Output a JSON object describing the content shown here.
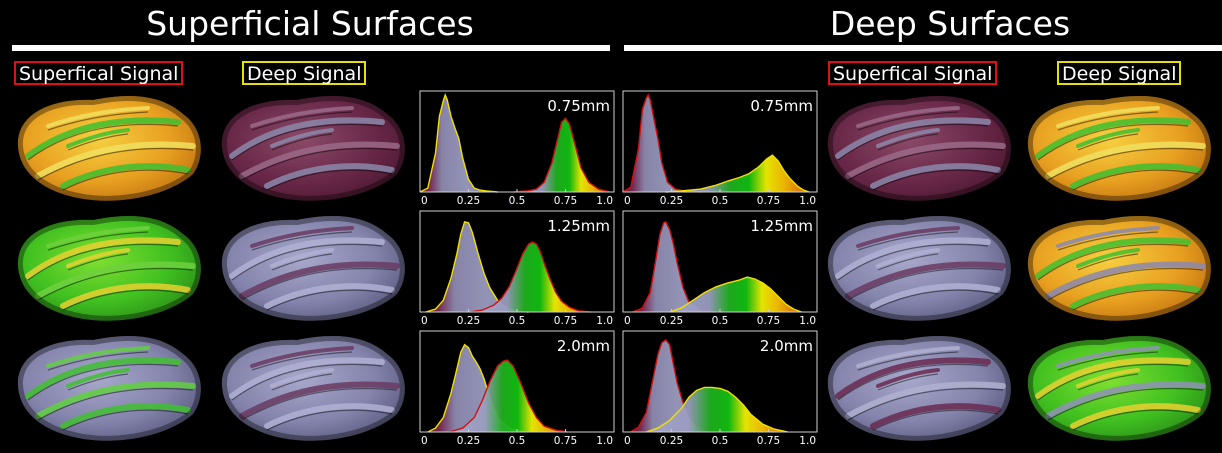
{
  "headers": {
    "superficial_title": "Superficial Surfaces",
    "deep_title": "Deep Surfaces"
  },
  "labels": {
    "sup_superficial_signal": "Superfical Signal",
    "sup_deep_signal": "Deep Signal",
    "deep_superficial_signal": "Superfical Signal",
    "deep_deep_signal": "Deep Signal"
  },
  "colors": {
    "superficial_box": "#e01010",
    "deep_box": "#e8e000",
    "deep_signal_fill": "#6a2850",
    "superficial_signal_fill": "#8a88b0"
  },
  "brains": {
    "left_superficial": [
      "yellow-orange-green",
      "green-yellow",
      "green-lavender"
    ],
    "left_deep": [
      "maroon-lavender",
      "lavender",
      "lavender"
    ],
    "right_superficial": [
      "maroon-lavender",
      "lavender",
      "lavender-maroon"
    ],
    "right_deep": [
      "yellow-orange-green",
      "yellow-green-lavender",
      "green-yellow-lavender"
    ]
  },
  "chart_data": [
    {
      "type": "area",
      "panel": "superficial",
      "resolution": "0.75mm",
      "xticks": [
        "0",
        "0.25",
        "0.5",
        "0.75",
        "1.0"
      ],
      "xlim": [
        0,
        1.0
      ],
      "series": [
        {
          "fill": "lavender-maroon",
          "outline": "yellow",
          "x": [
            0,
            0.04,
            0.08,
            0.1,
            0.12,
            0.13,
            0.14,
            0.16,
            0.18,
            0.2,
            0.22,
            0.25,
            0.28,
            0.31,
            0.34,
            0.4
          ],
          "values": [
            0,
            0.04,
            0.4,
            0.78,
            0.94,
            1.0,
            0.95,
            0.78,
            0.66,
            0.55,
            0.35,
            0.13,
            0.04,
            0.02,
            0.01,
            0
          ]
        },
        {
          "fill": "green-yellow-orange",
          "outline": "red",
          "x": [
            0.48,
            0.55,
            0.6,
            0.64,
            0.68,
            0.71,
            0.73,
            0.75,
            0.77,
            0.8,
            0.83,
            0.87,
            0.92,
            0.96,
            0.98
          ],
          "values": [
            0,
            0.01,
            0.03,
            0.1,
            0.3,
            0.55,
            0.72,
            0.76,
            0.7,
            0.48,
            0.25,
            0.1,
            0.03,
            0.01,
            0
          ]
        }
      ]
    },
    {
      "type": "area",
      "panel": "deep",
      "resolution": "0.75mm",
      "xticks": [
        "0",
        "0.25",
        "0.5",
        "0.75",
        "1.0"
      ],
      "xlim": [
        0,
        1.0
      ],
      "series": [
        {
          "fill": "lavender-maroon",
          "outline": "red",
          "x": [
            0,
            0.04,
            0.08,
            0.1,
            0.12,
            0.13,
            0.14,
            0.16,
            0.18,
            0.2,
            0.23,
            0.27,
            0.32,
            0.4
          ],
          "values": [
            0,
            0.05,
            0.45,
            0.85,
            0.97,
            1.0,
            0.95,
            0.75,
            0.55,
            0.3,
            0.1,
            0.03,
            0.01,
            0
          ]
        },
        {
          "fill": "green-yellow-orange",
          "outline": "yellow",
          "x": [
            0.22,
            0.3,
            0.4,
            0.48,
            0.55,
            0.6,
            0.65,
            0.7,
            0.74,
            0.77,
            0.8,
            0.83,
            0.86,
            0.9,
            0.93,
            0.96
          ],
          "values": [
            0,
            0.01,
            0.03,
            0.07,
            0.12,
            0.15,
            0.19,
            0.26,
            0.34,
            0.38,
            0.32,
            0.22,
            0.14,
            0.06,
            0.02,
            0
          ]
        }
      ]
    },
    {
      "type": "area",
      "panel": "superficial",
      "resolution": "1.25mm",
      "xticks": [
        "0",
        "0.25",
        "0.5",
        "0.75",
        "1.0"
      ],
      "xlim": [
        0,
        1.0
      ],
      "series": [
        {
          "fill": "lavender-maroon",
          "outline": "yellow",
          "x": [
            0.03,
            0.08,
            0.12,
            0.16,
            0.19,
            0.21,
            0.23,
            0.25,
            0.27,
            0.3,
            0.33,
            0.36,
            0.4,
            0.44,
            0.5,
            0.56
          ],
          "values": [
            0,
            0.03,
            0.12,
            0.35,
            0.6,
            0.8,
            0.93,
            0.92,
            0.82,
            0.6,
            0.4,
            0.25,
            0.12,
            0.05,
            0.01,
            0
          ]
        },
        {
          "fill": "green-yellow-orange",
          "outline": "red",
          "x": [
            0.26,
            0.32,
            0.38,
            0.42,
            0.46,
            0.5,
            0.53,
            0.56,
            0.58,
            0.6,
            0.62,
            0.64,
            0.67,
            0.7,
            0.73,
            0.77,
            0.82,
            0.88
          ],
          "values": [
            0,
            0.02,
            0.07,
            0.14,
            0.26,
            0.45,
            0.6,
            0.7,
            0.72,
            0.7,
            0.62,
            0.5,
            0.34,
            0.2,
            0.11,
            0.05,
            0.01,
            0
          ]
        }
      ]
    },
    {
      "type": "area",
      "panel": "deep",
      "resolution": "1.25mm",
      "xticks": [
        "0",
        "0.25",
        "0.5",
        "0.75",
        "1.0"
      ],
      "xlim": [
        0,
        1.0
      ],
      "series": [
        {
          "fill": "lavender-maroon",
          "outline": "red",
          "x": [
            0.05,
            0.1,
            0.14,
            0.17,
            0.19,
            0.21,
            0.22,
            0.24,
            0.26,
            0.28,
            0.31,
            0.34,
            0.4,
            0.47
          ],
          "values": [
            0,
            0.04,
            0.2,
            0.55,
            0.8,
            0.92,
            0.93,
            0.85,
            0.7,
            0.5,
            0.25,
            0.1,
            0.02,
            0
          ]
        },
        {
          "fill": "green-yellow-orange",
          "outline": "yellow",
          "x": [
            0.24,
            0.3,
            0.36,
            0.42,
            0.48,
            0.54,
            0.6,
            0.64,
            0.68,
            0.72,
            0.76,
            0.8,
            0.84,
            0.88,
            0.92
          ],
          "values": [
            0,
            0.04,
            0.12,
            0.2,
            0.26,
            0.3,
            0.33,
            0.36,
            0.34,
            0.3,
            0.24,
            0.16,
            0.08,
            0.03,
            0
          ]
        }
      ]
    },
    {
      "type": "area",
      "panel": "superficial",
      "resolution": "2.0mm",
      "xticks": [
        "0",
        "0.25",
        "0.5",
        "0.75",
        "1.0"
      ],
      "xlim": [
        0,
        1.0
      ],
      "series": [
        {
          "fill": "lavender-maroon",
          "outline": "yellow",
          "x": [
            0.04,
            0.08,
            0.12,
            0.16,
            0.19,
            0.21,
            0.23,
            0.25,
            0.27,
            0.29,
            0.31,
            0.33,
            0.36,
            0.4,
            0.46,
            0.54
          ],
          "values": [
            0,
            0.04,
            0.15,
            0.4,
            0.65,
            0.82,
            0.9,
            0.87,
            0.78,
            0.72,
            0.65,
            0.55,
            0.35,
            0.15,
            0.04,
            0
          ]
        },
        {
          "fill": "green-yellow-orange",
          "outline": "red",
          "x": [
            0.15,
            0.22,
            0.28,
            0.32,
            0.36,
            0.4,
            0.43,
            0.45,
            0.48,
            0.52,
            0.56,
            0.6,
            0.64,
            0.7,
            0.76
          ],
          "values": [
            0,
            0.04,
            0.15,
            0.32,
            0.52,
            0.68,
            0.73,
            0.74,
            0.68,
            0.5,
            0.3,
            0.15,
            0.06,
            0.02,
            0
          ]
        }
      ]
    },
    {
      "type": "area",
      "panel": "deep",
      "resolution": "2.0mm",
      "xticks": [
        "0",
        "0.25",
        "0.5",
        "0.75",
        "1.0"
      ],
      "xlim": [
        0,
        1.0
      ],
      "series": [
        {
          "fill": "lavender-maroon",
          "outline": "red",
          "x": [
            0.04,
            0.08,
            0.12,
            0.15,
            0.18,
            0.2,
            0.22,
            0.24,
            0.26,
            0.28,
            0.31,
            0.34,
            0.38,
            0.44
          ],
          "values": [
            0,
            0.05,
            0.2,
            0.5,
            0.8,
            0.92,
            0.95,
            0.9,
            0.7,
            0.5,
            0.3,
            0.15,
            0.05,
            0
          ]
        },
        {
          "fill": "green-yellow-orange",
          "outline": "yellow",
          "x": [
            0.12,
            0.18,
            0.24,
            0.3,
            0.34,
            0.38,
            0.42,
            0.46,
            0.5,
            0.54,
            0.58,
            0.62,
            0.66,
            0.72,
            0.78,
            0.85
          ],
          "values": [
            0,
            0.04,
            0.12,
            0.24,
            0.36,
            0.43,
            0.46,
            0.46,
            0.45,
            0.42,
            0.36,
            0.28,
            0.18,
            0.08,
            0.03,
            0
          ]
        }
      ]
    }
  ]
}
